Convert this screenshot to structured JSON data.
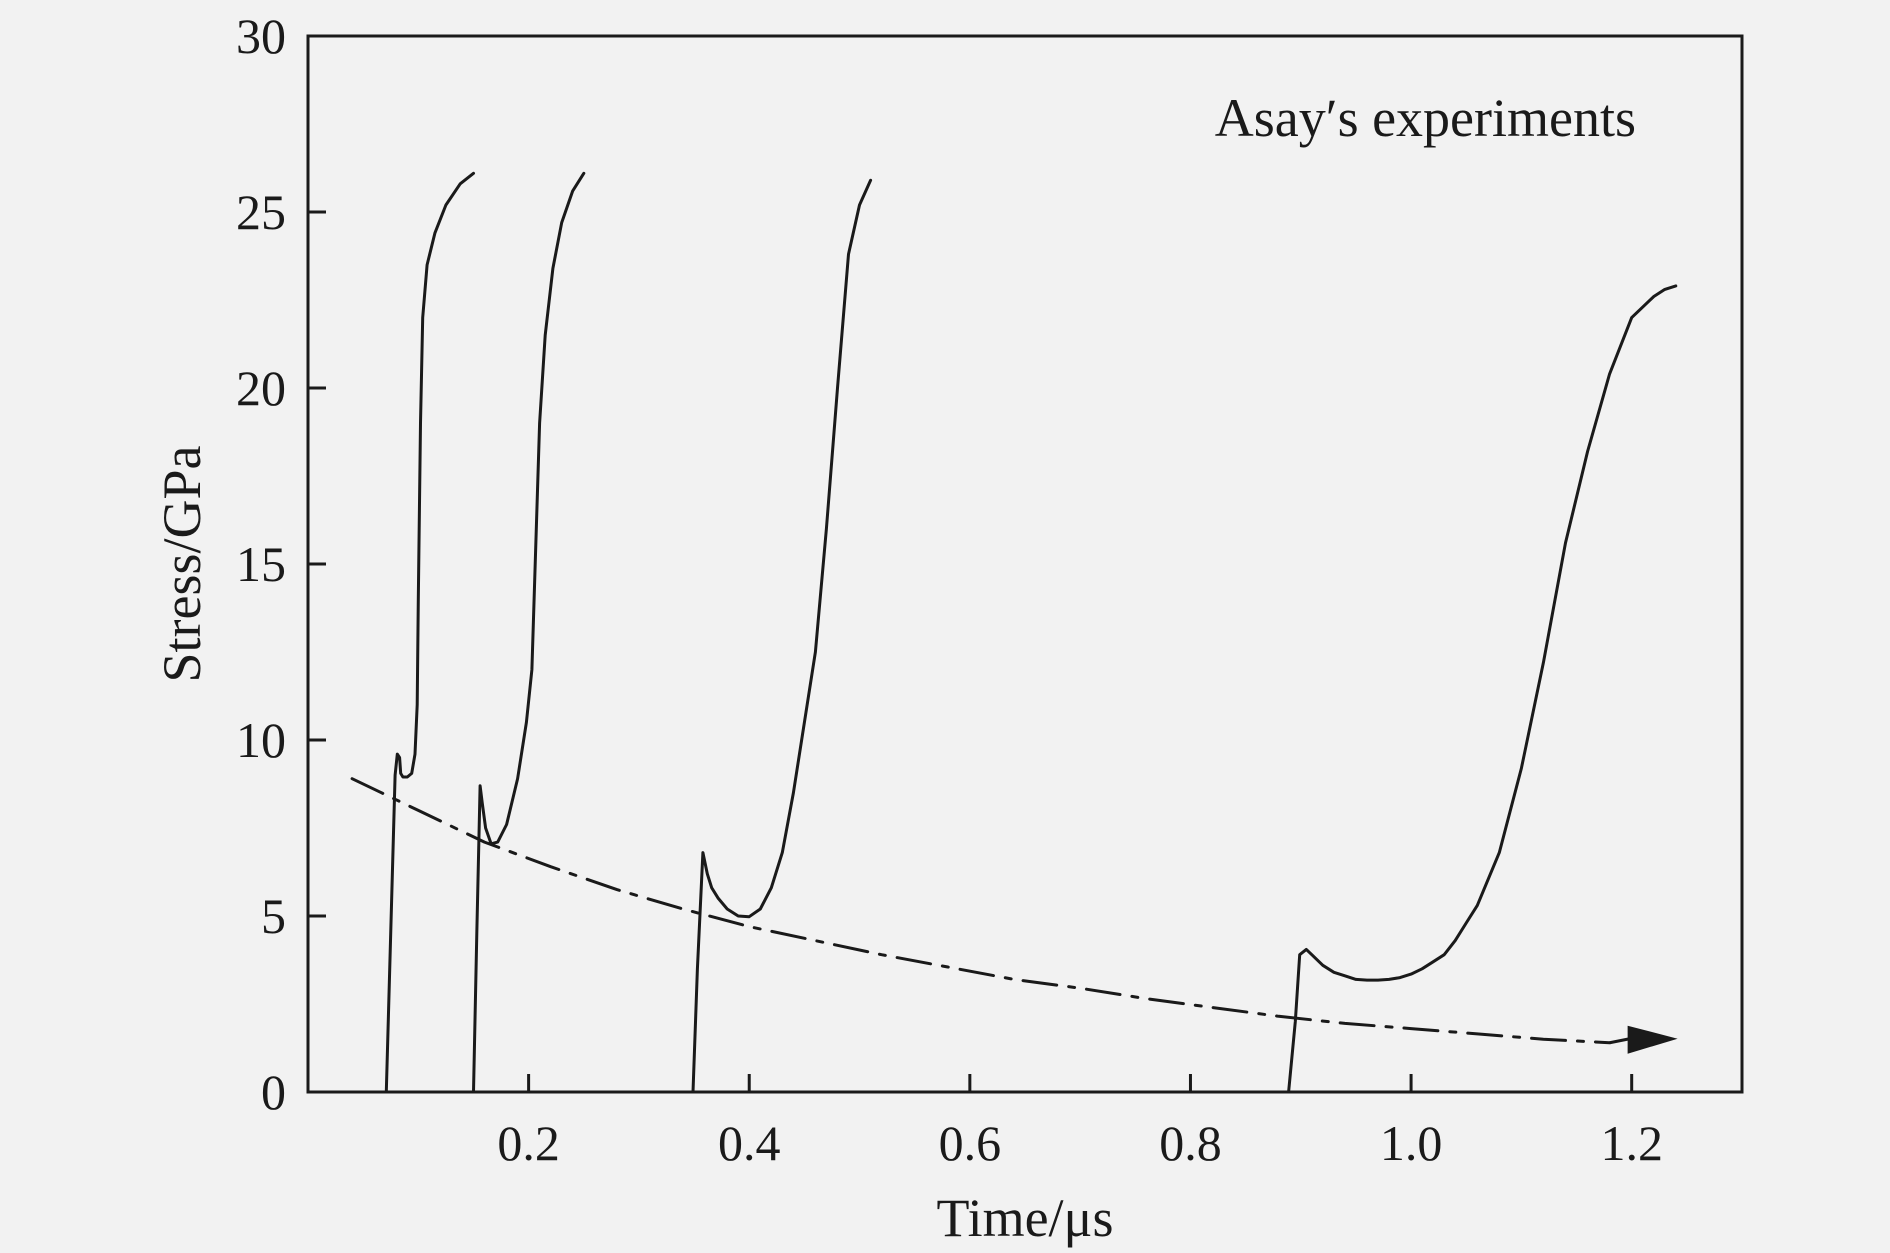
{
  "chart_data": {
    "type": "line",
    "title": "",
    "xlabel": "Time/μs",
    "ylabel": "Stress/GPa",
    "xlim": [
      0.0,
      1.3
    ],
    "ylim": [
      0,
      30
    ],
    "x_ticks": [
      0.2,
      0.4,
      0.6,
      0.8,
      1.0,
      1.2
    ],
    "x_tick_labels": [
      "0.2",
      "0.4",
      "0.6",
      "0.8",
      "1.0",
      "1.2"
    ],
    "y_ticks": [
      0,
      5,
      10,
      15,
      20,
      25,
      30
    ],
    "y_tick_labels": [
      "0",
      "5",
      "10",
      "15",
      "20",
      "25",
      "30"
    ],
    "grid": false,
    "annotation": "Asay′s experiments",
    "series": [
      {
        "style": "solid",
        "x": [
          0.071,
          0.075,
          0.079,
          0.081,
          0.083,
          0.084,
          0.086,
          0.09,
          0.094,
          0.097,
          0.099,
          0.1,
          0.102,
          0.104,
          0.108,
          0.115,
          0.125,
          0.138,
          0.15
        ],
        "y": [
          0,
          4.5,
          9,
          9.6,
          9.5,
          9.05,
          8.95,
          8.95,
          9.05,
          9.6,
          11,
          14,
          19,
          22,
          23.5,
          24.4,
          25.2,
          25.8,
          26.1
        ]
      },
      {
        "style": "solid",
        "x": [
          0.15,
          0.153,
          0.156,
          0.158,
          0.161,
          0.166,
          0.172,
          0.18,
          0.19,
          0.198,
          0.203,
          0.206,
          0.21,
          0.215,
          0.222,
          0.23,
          0.24,
          0.25
        ],
        "y": [
          0,
          4.5,
          8.7,
          8.2,
          7.5,
          7.05,
          7.1,
          7.6,
          8.9,
          10.5,
          12,
          15,
          19,
          21.5,
          23.4,
          24.7,
          25.6,
          26.1
        ]
      },
      {
        "style": "solid",
        "x": [
          0.349,
          0.353,
          0.358,
          0.362,
          0.366,
          0.372,
          0.38,
          0.39,
          0.4,
          0.41,
          0.42,
          0.43,
          0.44,
          0.45,
          0.46,
          0.47,
          0.48,
          0.49,
          0.5,
          0.51
        ],
        "y": [
          0,
          3.5,
          6.8,
          6.2,
          5.8,
          5.5,
          5.2,
          5.0,
          4.98,
          5.2,
          5.8,
          6.8,
          8.5,
          10.5,
          12.5,
          16,
          20,
          23.8,
          25.2,
          25.9
        ]
      },
      {
        "style": "solid",
        "x": [
          0.889,
          0.895,
          0.899,
          0.905,
          0.91,
          0.92,
          0.93,
          0.94,
          0.95,
          0.96,
          0.97,
          0.98,
          0.99,
          1.0,
          1.01,
          1.02,
          1.03,
          1.04,
          1.05,
          1.06,
          1.08,
          1.1,
          1.12,
          1.14,
          1.16,
          1.18,
          1.2,
          1.22,
          1.23,
          1.24
        ],
        "y": [
          0,
          2.0,
          3.9,
          4.05,
          3.9,
          3.6,
          3.4,
          3.3,
          3.2,
          3.18,
          3.18,
          3.2,
          3.25,
          3.35,
          3.5,
          3.7,
          3.9,
          4.3,
          4.8,
          5.3,
          6.8,
          9.2,
          12.2,
          15.6,
          18.2,
          20.4,
          22.0,
          22.6,
          22.8,
          22.9
        ]
      },
      {
        "style": "dash-dot",
        "arrow": true,
        "x": [
          0.04,
          0.1,
          0.16,
          0.22,
          0.28,
          0.34,
          0.4,
          0.46,
          0.52,
          0.58,
          0.64,
          0.7,
          0.76,
          0.82,
          0.88,
          0.94,
          1.0,
          1.06,
          1.12,
          1.18
        ],
        "y": [
          8.9,
          8.0,
          7.1,
          6.4,
          5.75,
          5.2,
          4.7,
          4.3,
          3.9,
          3.55,
          3.2,
          2.95,
          2.65,
          2.4,
          2.15,
          1.95,
          1.8,
          1.65,
          1.5,
          1.4
        ]
      }
    ]
  }
}
